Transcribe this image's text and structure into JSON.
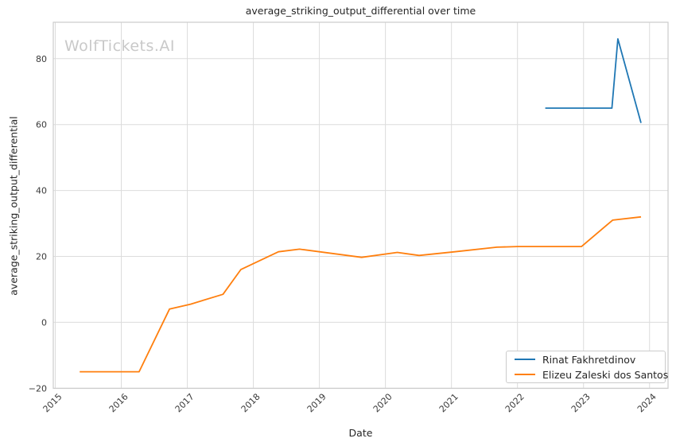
{
  "watermark": "WolfTickets.AI",
  "chart_data": {
    "type": "line",
    "title": "average_striking_output_differential over time",
    "xlabel": "Date",
    "ylabel": "average_striking_output_differential",
    "grid": true,
    "legend_position": "lower right",
    "xlim": [
      2014.97,
      2024.28
    ],
    "ylim": [
      -20.05,
      91.05
    ],
    "x_ticks": [
      {
        "value": 2015,
        "label": "2015"
      },
      {
        "value": 2016,
        "label": "2016"
      },
      {
        "value": 2017,
        "label": "2017"
      },
      {
        "value": 2018,
        "label": "2018"
      },
      {
        "value": 2019,
        "label": "2019"
      },
      {
        "value": 2020,
        "label": "2020"
      },
      {
        "value": 2021,
        "label": "2021"
      },
      {
        "value": 2022,
        "label": "2022"
      },
      {
        "value": 2023,
        "label": "2023"
      },
      {
        "value": 2024,
        "label": "2024"
      }
    ],
    "y_ticks": [
      {
        "value": -20,
        "label": "−20"
      },
      {
        "value": 0,
        "label": "0"
      },
      {
        "value": 20,
        "label": "20"
      },
      {
        "value": 40,
        "label": "40"
      },
      {
        "value": 60,
        "label": "60"
      },
      {
        "value": 80,
        "label": "80"
      }
    ],
    "series": [
      {
        "name": "Rinat Fakhretdinov",
        "color": "#1f77b4",
        "x": [
          2022.42,
          2023.43,
          2023.52,
          2023.87
        ],
        "y": [
          65,
          65,
          86,
          60.5
        ]
      },
      {
        "name": "Elizeu Zaleski dos Santos",
        "color": "#ff7f0e",
        "x": [
          2015.37,
          2016.27,
          2016.73,
          2017.05,
          2017.54,
          2017.81,
          2018.38,
          2018.7,
          2019.64,
          2020.18,
          2020.51,
          2021.05,
          2021.69,
          2022.0,
          2022.97,
          2023.44,
          2023.87
        ],
        "y": [
          -15,
          -15,
          4,
          5.5,
          8.5,
          16,
          21.4,
          22.2,
          19.7,
          21.2,
          20.3,
          21.4,
          22.8,
          23,
          23,
          31,
          32
        ]
      }
    ]
  },
  "colors": {
    "background": "#ffffff",
    "grid": "#dcdcdc",
    "spine": "#cccccc",
    "title_text": "#262626",
    "tick_text": "#3a3a3a",
    "watermark": "#c9c9c9"
  }
}
